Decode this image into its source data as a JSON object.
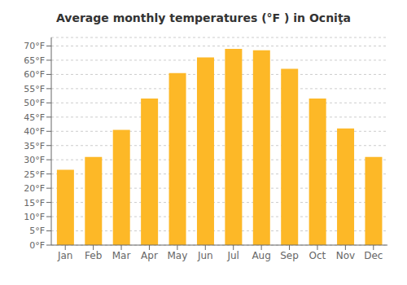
{
  "chart_data": {
    "type": "bar",
    "title": "Average monthly temperatures (°F ) in Ocniţa",
    "categories": [
      "Jan",
      "Feb",
      "Mar",
      "Apr",
      "May",
      "Jun",
      "Jul",
      "Aug",
      "Sep",
      "Oct",
      "Nov",
      "Dec"
    ],
    "values": [
      26.5,
      31.0,
      40.5,
      51.5,
      60.5,
      66.0,
      69.0,
      68.5,
      62.0,
      51.5,
      41.0,
      31.0
    ],
    "color": "#FDB827",
    "ylim": [
      0,
      73
    ],
    "yticks": [
      {
        "value": 0,
        "label": "0°F"
      },
      {
        "value": 5,
        "label": "5°F"
      },
      {
        "value": 10,
        "label": "10°F"
      },
      {
        "value": 15,
        "label": "15°F"
      },
      {
        "value": 20,
        "label": "20°F"
      },
      {
        "value": 25,
        "label": "25°F"
      },
      {
        "value": 30,
        "label": "30°F"
      },
      {
        "value": 35,
        "label": "35°F"
      },
      {
        "value": 40,
        "label": "40°F"
      },
      {
        "value": 45,
        "label": "45°F"
      },
      {
        "value": 50,
        "label": "50°F"
      },
      {
        "value": 55,
        "label": "55°F"
      },
      {
        "value": 60,
        "label": "60°F"
      },
      {
        "value": 65,
        "label": "65°F"
      },
      {
        "value": 70,
        "label": "70°F"
      }
    ],
    "grid": true
  }
}
